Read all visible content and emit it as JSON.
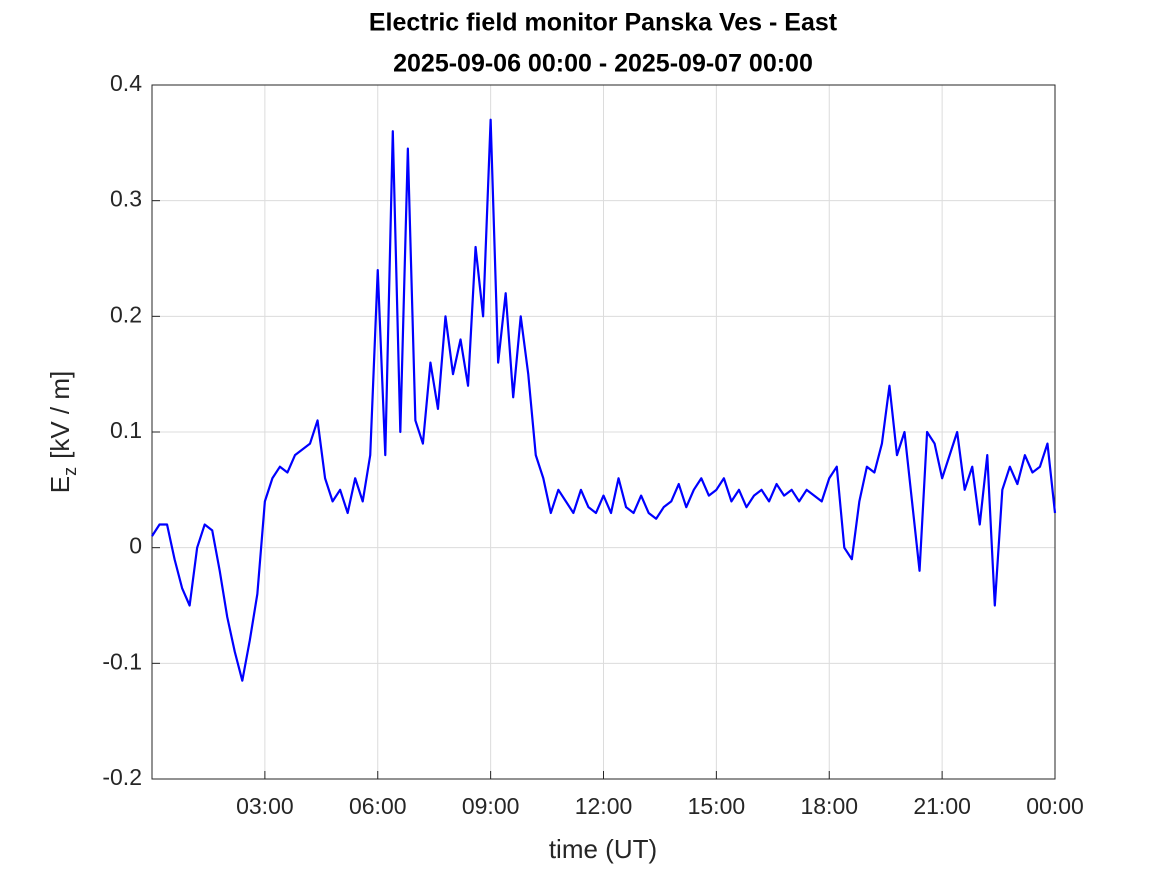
{
  "chart_data": {
    "type": "line",
    "title": "Electric field monitor Panska Ves - East",
    "subtitle": "2025-09-06 00:00 - 2025-09-07 00:00",
    "xlabel": "time (UT)",
    "ylabel": "E",
    "ylabel_sub": "z",
    "ylabel_unit": "[kV / m]",
    "x": [
      0,
      0.2,
      0.4,
      0.6,
      0.8,
      1,
      1.2,
      1.4,
      1.6,
      1.8,
      2,
      2.2,
      2.4,
      2.6,
      2.8,
      3,
      3.2,
      3.4,
      3.6,
      3.8,
      4,
      4.2,
      4.4,
      4.6,
      4.8,
      5,
      5.2,
      5.4,
      5.6,
      5.8,
      6,
      6.2,
      6.4,
      6.6,
      6.8,
      7,
      7.2,
      7.4,
      7.6,
      7.8,
      8,
      8.2,
      8.4,
      8.6,
      8.8,
      9,
      9.2,
      9.4,
      9.6,
      9.8,
      10,
      10.2,
      10.4,
      10.6,
      10.8,
      11,
      11.2,
      11.4,
      11.6,
      11.8,
      12,
      12.2,
      12.4,
      12.6,
      12.8,
      13,
      13.2,
      13.4,
      13.6,
      13.8,
      14,
      14.2,
      14.4,
      14.6,
      14.8,
      15,
      15.2,
      15.4,
      15.6,
      15.8,
      16,
      16.2,
      16.4,
      16.6,
      16.8,
      17,
      17.2,
      17.4,
      17.6,
      17.8,
      18,
      18.2,
      18.4,
      18.6,
      18.8,
      19,
      19.2,
      19.4,
      19.6,
      19.8,
      20,
      20.2,
      20.4,
      20.6,
      20.8,
      21,
      21.2,
      21.4,
      21.6,
      21.8,
      22,
      22.2,
      22.4,
      22.6,
      22.8,
      23,
      23.2,
      23.4,
      23.6,
      23.8,
      24
    ],
    "series": [
      {
        "color": "#0000ff",
        "values": [
          0.01,
          0.02,
          0.02,
          -0.01,
          -0.035,
          -0.05,
          0,
          0.02,
          0.015,
          -0.02,
          -0.06,
          -0.09,
          -0.115,
          -0.08,
          -0.04,
          0.04,
          0.06,
          0.07,
          0.065,
          0.08,
          0.085,
          0.09,
          0.11,
          0.06,
          0.04,
          0.05,
          0.03,
          0.06,
          0.04,
          0.08,
          0.24,
          0.08,
          0.36,
          0.1,
          0.345,
          0.11,
          0.09,
          0.16,
          0.12,
          0.2,
          0.15,
          0.18,
          0.14,
          0.26,
          0.2,
          0.37,
          0.16,
          0.22,
          0.13,
          0.2,
          0.15,
          0.08,
          0.06,
          0.03,
          0.05,
          0.04,
          0.03,
          0.05,
          0.035,
          0.03,
          0.045,
          0.03,
          0.06,
          0.035,
          0.03,
          0.045,
          0.03,
          0.025,
          0.035,
          0.04,
          0.055,
          0.035,
          0.05,
          0.06,
          0.045,
          0.05,
          0.06,
          0.04,
          0.05,
          0.035,
          0.045,
          0.05,
          0.04,
          0.055,
          0.045,
          0.05,
          0.04,
          0.05,
          0.045,
          0.04,
          0.06,
          0.07,
          0,
          -0.01,
          0.04,
          0.07,
          0.065,
          0.09,
          0.14,
          0.08,
          0.1,
          0.04,
          -0.02,
          0.1,
          0.09,
          0.06,
          0.08,
          0.1,
          0.05,
          0.07,
          0.02,
          0.08,
          -0.05,
          0.05,
          0.07,
          0.055,
          0.08,
          0.065,
          0.07,
          0.09,
          0.03
        ]
      }
    ],
    "xlim": [
      0,
      24
    ],
    "xticks": [
      {
        "value": 3,
        "label": "03:00"
      },
      {
        "value": 6,
        "label": "06:00"
      },
      {
        "value": 9,
        "label": "09:00"
      },
      {
        "value": 12,
        "label": "12:00"
      },
      {
        "value": 15,
        "label": "15:00"
      },
      {
        "value": 18,
        "label": "18:00"
      },
      {
        "value": 21,
        "label": "21:00"
      },
      {
        "value": 24,
        "label": "00:00"
      }
    ],
    "ylim": [
      -0.2,
      0.4
    ],
    "yticks": [
      -0.2,
      -0.1,
      0,
      0.1,
      0.2,
      0.3,
      0.4
    ],
    "grid": true
  }
}
